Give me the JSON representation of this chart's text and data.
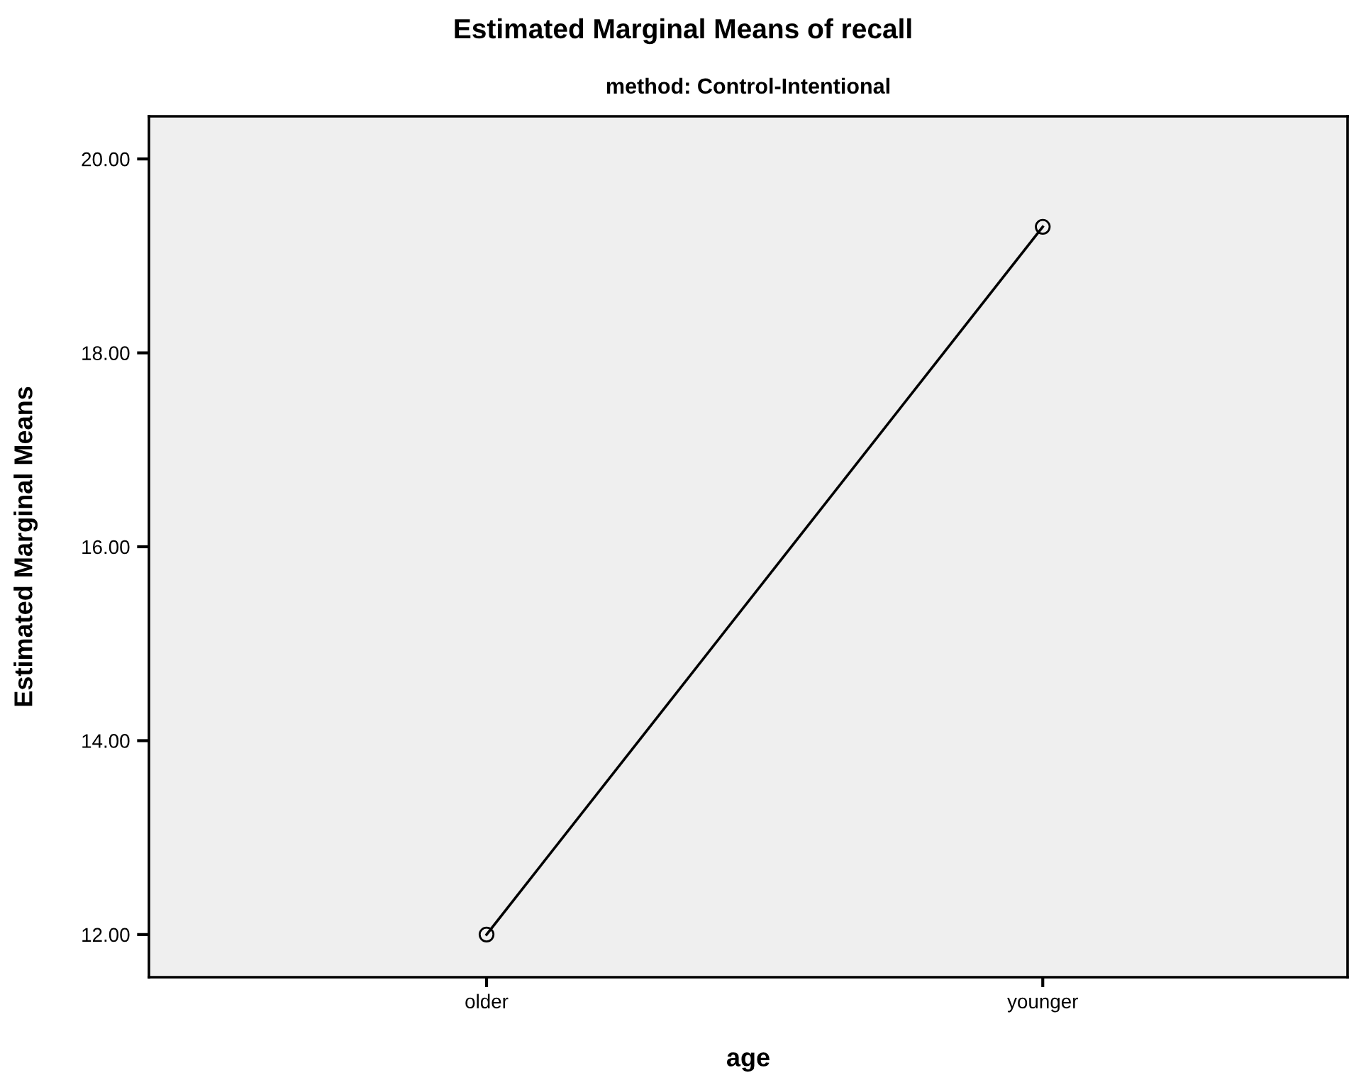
{
  "chart_data": {
    "type": "line",
    "title": "Estimated Marginal Means of recall",
    "subtitle": "method: Control-Intentional",
    "xlabel": "age",
    "ylabel": "Estimated Marginal Means",
    "categories": [
      "older",
      "younger"
    ],
    "series": [
      {
        "color": "#000000",
        "values": [
          12.0,
          19.3
        ]
      }
    ],
    "ylim": [
      11.56,
      20.44
    ],
    "yticks": [
      {
        "value": 12,
        "label": "12.00"
      },
      {
        "value": 14,
        "label": "14.00"
      },
      {
        "value": 16,
        "label": "16.00"
      },
      {
        "value": 18,
        "label": "18.00"
      },
      {
        "value": 20,
        "label": "20.00"
      }
    ],
    "marker": "circle",
    "line_style": "solid",
    "grid": false,
    "legend": false
  }
}
